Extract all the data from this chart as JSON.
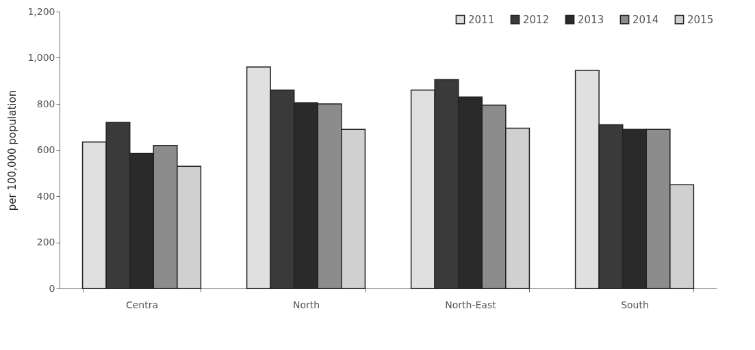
{
  "chart_data": {
    "type": "bar",
    "ylabel": "per 100,000 population",
    "categories": [
      "Centra",
      "North",
      "North-East",
      "South"
    ],
    "series": [
      {
        "name": "2011",
        "color": "#e0e0e0",
        "values": [
          635,
          960,
          860,
          945
        ]
      },
      {
        "name": "2012",
        "color": "#3a3a3a",
        "values": [
          720,
          860,
          905,
          710
        ]
      },
      {
        "name": "2013",
        "color": "#2a2a2a",
        "values": [
          585,
          805,
          830,
          690
        ]
      },
      {
        "name": "2014",
        "color": "#8c8c8c",
        "values": [
          620,
          800,
          795,
          690
        ]
      },
      {
        "name": "2015",
        "color": "#d0d0d0",
        "values": [
          530,
          690,
          695,
          450
        ]
      }
    ],
    "ylim": [
      0,
      1200
    ],
    "yticks": [
      0,
      200,
      400,
      600,
      800,
      {
        "value": 1000,
        "label": "1,000"
      },
      {
        "value": 1200,
        "label": "1,200"
      }
    ],
    "grid": false,
    "legend": "top right"
  }
}
